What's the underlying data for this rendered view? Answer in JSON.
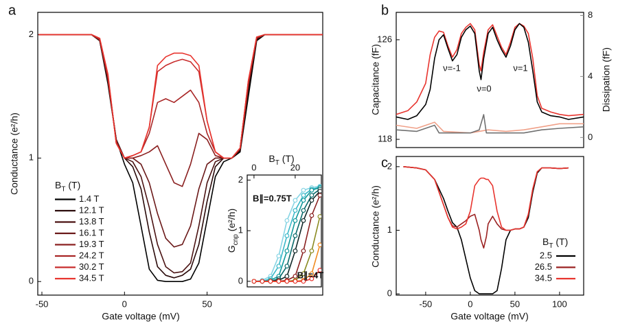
{
  "chart_data": [
    {
      "type": "line",
      "panel_label": "a",
      "xlabel": "Gate voltage (mV)",
      "ylabel": "Conductance  (e²/h)",
      "xlim": [
        -52.5,
        120
      ],
      "ylim": [
        -0.11,
        2.18
      ],
      "xticks": [
        -50,
        0,
        50
      ],
      "yticks": [
        0,
        1,
        2
      ],
      "legend": "lower left",
      "legend_title": [
        "B",
        "T",
        " (T)"
      ],
      "x": [
        -52,
        -20,
        -15,
        -10,
        -5,
        0,
        5,
        10,
        15,
        20,
        25,
        30,
        35,
        40,
        45,
        50,
        55,
        60,
        65,
        70,
        75,
        80,
        85,
        120
      ],
      "series": [
        {
          "name": "1.4 T",
          "color": "#000000",
          "values": [
            2,
            2,
            1.95,
            1.6,
            1.15,
            0.95,
            0.8,
            0.45,
            0.1,
            0.01,
            0,
            0,
            0,
            0.02,
            0.15,
            0.5,
            0.85,
            0.97,
            1.0,
            1.05,
            1.5,
            1.95,
            2,
            2
          ]
        },
        {
          "name": "12.1 T",
          "color": "#2a0a0a",
          "values": [
            2,
            2,
            1.95,
            1.62,
            1.15,
            1.0,
            0.93,
            0.75,
            0.4,
            0.12,
            0.05,
            0.03,
            0.05,
            0.1,
            0.3,
            0.65,
            0.93,
            1.0,
            1.0,
            1.06,
            1.55,
            1.96,
            2,
            2
          ]
        },
        {
          "name": "13.8 T",
          "color": "#4a1212",
          "values": [
            2,
            2,
            1.95,
            1.63,
            1.15,
            1.0,
            0.97,
            0.85,
            0.6,
            0.3,
            0.12,
            0.07,
            0.08,
            0.15,
            0.45,
            0.8,
            0.97,
            1.0,
            1.0,
            1.07,
            1.58,
            1.97,
            2,
            2
          ]
        },
        {
          "name": "16.1 T",
          "color": "#6a1818",
          "values": [
            2,
            2,
            1.96,
            1.64,
            1.14,
            1.0,
            1.0,
            0.95,
            0.8,
            0.55,
            0.35,
            0.28,
            0.3,
            0.45,
            0.75,
            0.95,
            1.0,
            1.0,
            1.0,
            1.08,
            1.6,
            1.97,
            2,
            2
          ]
        },
        {
          "name": "19.3 T",
          "color": "#8a1f1f",
          "values": [
            2,
            2,
            1.96,
            1.65,
            1.13,
            1.0,
            1.0,
            1.02,
            1.05,
            1.1,
            0.95,
            0.8,
            0.77,
            0.95,
            1.2,
            1.15,
            1.02,
            1.0,
            1.0,
            1.08,
            1.6,
            1.97,
            2,
            2
          ]
        },
        {
          "name": "24.2 T",
          "color": "#a82525",
          "values": [
            2,
            2,
            1.96,
            1.66,
            1.12,
            1.0,
            1.02,
            1.05,
            1.2,
            1.45,
            1.48,
            1.45,
            1.5,
            1.55,
            1.45,
            1.2,
            1.05,
            1.0,
            1.0,
            1.08,
            1.62,
            1.98,
            2,
            2
          ]
        },
        {
          "name": "30.2 T",
          "color": "#c82c2c",
          "values": [
            2,
            2,
            1.97,
            1.67,
            1.12,
            1.0,
            1.02,
            1.05,
            1.25,
            1.7,
            1.75,
            1.78,
            1.8,
            1.78,
            1.7,
            1.3,
            1.05,
            1.0,
            1.0,
            1.08,
            1.62,
            1.98,
            2,
            2
          ]
        },
        {
          "name": "34.5 T",
          "color": "#e8342e",
          "values": [
            2,
            2,
            1.97,
            1.68,
            1.12,
            1.0,
            1.02,
            1.05,
            1.25,
            1.75,
            1.82,
            1.85,
            1.85,
            1.83,
            1.75,
            1.3,
            1.05,
            1.0,
            1.0,
            1.08,
            1.63,
            1.98,
            2,
            2
          ]
        }
      ]
    },
    {
      "type": "line",
      "markers": true,
      "xaxis": "top",
      "xlabel": [
        "B",
        "T",
        " (T)"
      ],
      "ylabel": [
        "G",
        "cnp",
        " (e²/h)"
      ],
      "xlim": [
        -3.3,
        32.7
      ],
      "ylim": [
        -0.11,
        2.1
      ],
      "xticks": [
        0,
        20
      ],
      "yticks": [
        0,
        1,
        2
      ],
      "annotations": [
        {
          "text": "B∥=0.75T",
          "color": "#6cc8dc"
        },
        {
          "text": "B∥=4T",
          "color": "#e8342e"
        }
      ],
      "x": [
        0,
        4,
        8,
        12,
        16,
        20,
        24,
        28,
        32
      ],
      "series": [
        {
          "color": "#86d4e4",
          "values": [
            0,
            0.02,
            0.1,
            0.5,
            1.2,
            1.6,
            1.8,
            1.85,
            1.88
          ]
        },
        {
          "color": "#3ab8c8",
          "values": [
            0,
            0,
            0.05,
            0.3,
            0.9,
            1.4,
            1.7,
            1.82,
            1.86
          ]
        },
        {
          "color": "#10989a",
          "values": [
            0,
            0,
            0.02,
            0.1,
            0.6,
            1.2,
            1.6,
            1.8,
            1.85
          ]
        },
        {
          "color": "#0a6a6a",
          "values": [
            0,
            0,
            0,
            0.05,
            0.3,
            0.9,
            1.4,
            1.7,
            1.82
          ]
        },
        {
          "color": "#102828",
          "values": [
            0,
            0,
            0,
            0.02,
            0.1,
            0.6,
            1.2,
            1.6,
            1.78
          ]
        },
        {
          "color": "#8a2020",
          "values": [
            0,
            0,
            0,
            0,
            0.02,
            0.1,
            0.6,
            1.3,
            1.7
          ]
        },
        {
          "color": "#8a8a20",
          "values": [
            0,
            0,
            0,
            0,
            0,
            0.02,
            0.15,
            0.6,
            1.28
          ]
        },
        {
          "color": "#f08a20",
          "values": [
            0,
            0,
            0,
            0,
            0,
            0,
            0.02,
            0.15,
            0.72
          ]
        },
        {
          "color": "#e8342e",
          "values": [
            0,
            0,
            0,
            0,
            0,
            0,
            0,
            0.05,
            0.22
          ]
        }
      ]
    },
    {
      "type": "line",
      "panel_label": "b",
      "ylabel": "Capacitance (fF)",
      "y2label": "Dissipation (fF)",
      "xlim": [
        -83,
        127
      ],
      "ylim": [
        117.34,
        128.2
      ],
      "yticks": [
        118,
        126
      ],
      "y2lim": [
        -0.66,
        8.2
      ],
      "y2ticks": [
        0,
        4,
        8
      ],
      "annotations": [
        {
          "text": "ν=-1",
          "color": "#000000"
        },
        {
          "text": "ν=0",
          "color": "#000000"
        },
        {
          "text": "ν=1",
          "color": "#000000"
        }
      ],
      "x": [
        -83,
        -70,
        -60,
        -50,
        -45,
        -40,
        -35,
        -30,
        -25,
        -20,
        -15,
        -10,
        -5,
        0,
        5,
        10,
        12,
        15,
        20,
        25,
        30,
        35,
        40,
        45,
        50,
        55,
        60,
        65,
        70,
        75,
        80,
        90,
        100,
        110,
        127
      ],
      "series": [
        {
          "color": "#e8342e",
          "values": [
            120,
            120.3,
            121,
            122.5,
            124.8,
            126.2,
            126.7,
            126.6,
            125.5,
            124.6,
            125.2,
            126.5,
            127,
            127.3,
            126.8,
            124,
            123.5,
            125,
            126.8,
            127.2,
            126.3,
            125.4,
            124.8,
            125.8,
            127,
            127.3,
            127.1,
            126.5,
            124.5,
            121.5,
            120.5,
            120.2,
            120,
            119.9,
            120
          ]
        },
        {
          "color": "#000000",
          "values": [
            119.8,
            119.6,
            119.9,
            120.8,
            122,
            124.5,
            126,
            126.4,
            125.3,
            124.3,
            124.8,
            126.2,
            126.8,
            127.1,
            126.5,
            123.5,
            122.8,
            124.5,
            126.5,
            127,
            126,
            125.2,
            124.6,
            125.5,
            126.8,
            127.3,
            127,
            125.8,
            123.5,
            121,
            120.2,
            119.9,
            119.8,
            119.6,
            119.8
          ]
        },
        {
          "color": "#f0a088",
          "axis": "y2",
          "x": [
            -83,
            -60,
            -40,
            -30,
            0,
            20,
            40,
            60,
            80,
            100,
            127
          ],
          "values": [
            0.8,
            0.6,
            1.0,
            0.4,
            0.3,
            0.5,
            0.4,
            0.5,
            0.7,
            0.9,
            0.9
          ]
        },
        {
          "color": "#707070",
          "axis": "y2",
          "x": [
            -83,
            -60,
            -40,
            -35,
            -20,
            0,
            10,
            15,
            18,
            40,
            60,
            80,
            100,
            127
          ],
          "values": [
            0.5,
            0.4,
            0.8,
            0.3,
            0.3,
            0.3,
            0.5,
            1.5,
            0.3,
            0.3,
            0.3,
            0.5,
            0.6,
            0.7
          ]
        }
      ]
    },
    {
      "type": "line",
      "panel_label": "c",
      "xlabel": "Gate voltage (mV)",
      "ylabel": "Conductance (e²/h)",
      "xlim": [
        -83,
        127
      ],
      "ylim": [
        -0.02,
        2.16
      ],
      "xticks": [
        -50,
        0,
        50,
        100
      ],
      "yticks": [
        0,
        1,
        2
      ],
      "legend": "lower right",
      "legend_title": [
        "B",
        "T",
        " (T)"
      ],
      "x": [
        -75,
        -60,
        -50,
        -40,
        -30,
        -25,
        -20,
        -15,
        -10,
        -5,
        0,
        5,
        10,
        12,
        15,
        18,
        20,
        25,
        30,
        35,
        40,
        45,
        50,
        55,
        60,
        65,
        70,
        75,
        80,
        90,
        100,
        110
      ],
      "series": [
        {
          "name": "2.5",
          "color": "#000000",
          "values": [
            2,
            1.98,
            1.95,
            1.8,
            1.5,
            1.3,
            1.12,
            1.05,
            0.85,
            0.55,
            0.25,
            0.05,
            0,
            0,
            0,
            0,
            0,
            0,
            0.05,
            0.4,
            0.85,
            1.0,
            1.02,
            1.02,
            1.05,
            1.2,
            1.6,
            1.9,
            1.98,
            1.98,
            1.97,
            1.98
          ]
        },
        {
          "name": "26.5",
          "color": "#9a2020",
          "values": [
            2,
            1.98,
            1.95,
            1.8,
            1.4,
            1.2,
            1.07,
            1.05,
            1.1,
            1.15,
            1.22,
            1.25,
            1.0,
            0.85,
            0.72,
            0.9,
            1.1,
            1.22,
            1.1,
            1.02,
            1.0,
            1.0,
            1.02,
            1.02,
            1.05,
            1.25,
            1.65,
            1.92,
            1.98,
            1.98,
            1.97,
            1.98
          ]
        },
        {
          "name": "34.5",
          "color": "#e8342e",
          "values": [
            2,
            1.98,
            1.95,
            1.8,
            1.4,
            1.2,
            1.05,
            1.02,
            1.05,
            1.1,
            1.3,
            1.7,
            1.8,
            1.82,
            1.82,
            1.8,
            1.8,
            1.7,
            1.3,
            1.05,
            1.0,
            1.0,
            1.02,
            1.02,
            1.05,
            1.25,
            1.65,
            1.92,
            1.98,
            1.98,
            1.97,
            1.98
          ]
        }
      ]
    }
  ]
}
